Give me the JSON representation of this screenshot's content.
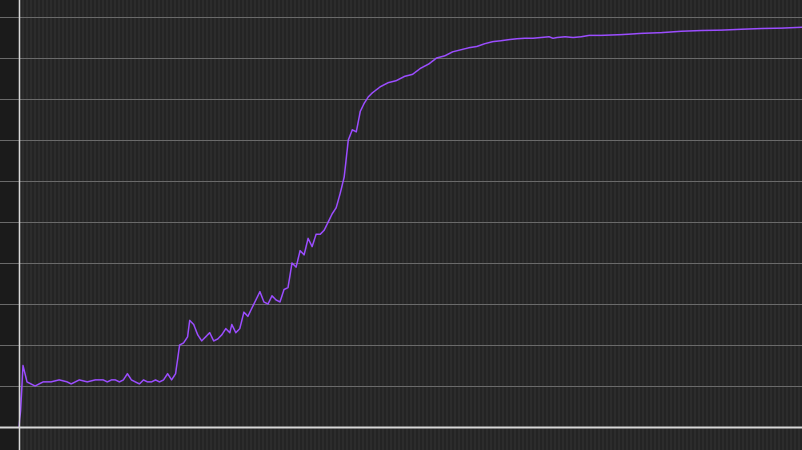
{
  "colors": {
    "background": "#242424",
    "minor_grid": "#353535",
    "major_grid": "#6a6a6a",
    "axis": "#d8d8d8",
    "left_gutter": "#1b1b1b",
    "line": "#9b4dff"
  },
  "chart_data": {
    "type": "line",
    "title": "",
    "xlabel": "",
    "ylabel": "",
    "grid": true,
    "xlim": [
      0,
      195
    ],
    "ylim": [
      0,
      10
    ],
    "y_major_gridlines": [
      1,
      2,
      3,
      4,
      5,
      6,
      7,
      8,
      9,
      10
    ],
    "series": [
      {
        "values": [
          [
            0,
            0.0
          ],
          [
            0.4,
            0.4
          ],
          [
            1,
            1.5
          ],
          [
            2,
            1.1
          ],
          [
            3,
            1.05
          ],
          [
            4,
            1.0
          ],
          [
            5,
            1.05
          ],
          [
            6,
            1.1
          ],
          [
            8,
            1.1
          ],
          [
            10,
            1.15
          ],
          [
            12,
            1.1
          ],
          [
            13,
            1.05
          ],
          [
            14,
            1.1
          ],
          [
            15,
            1.15
          ],
          [
            17,
            1.1
          ],
          [
            19,
            1.15
          ],
          [
            21,
            1.15
          ],
          [
            22,
            1.1
          ],
          [
            23,
            1.15
          ],
          [
            24,
            1.15
          ],
          [
            25,
            1.1
          ],
          [
            26,
            1.15
          ],
          [
            27,
            1.3
          ],
          [
            28,
            1.15
          ],
          [
            29,
            1.1
          ],
          [
            30,
            1.05
          ],
          [
            31,
            1.15
          ],
          [
            32,
            1.1
          ],
          [
            33,
            1.1
          ],
          [
            34,
            1.15
          ],
          [
            35,
            1.1
          ],
          [
            36,
            1.15
          ],
          [
            37,
            1.3
          ],
          [
            38,
            1.15
          ],
          [
            39,
            1.3
          ],
          [
            40,
            2.0
          ],
          [
            41,
            2.05
          ],
          [
            42,
            2.2
          ],
          [
            42.5,
            2.6
          ],
          [
            43.5,
            2.5
          ],
          [
            44.5,
            2.25
          ],
          [
            45.5,
            2.1
          ],
          [
            46.5,
            2.2
          ],
          [
            47.5,
            2.3
          ],
          [
            48.5,
            2.1
          ],
          [
            49.5,
            2.15
          ],
          [
            50.5,
            2.25
          ],
          [
            51.5,
            2.4
          ],
          [
            52.5,
            2.3
          ],
          [
            53,
            2.5
          ],
          [
            54,
            2.3
          ],
          [
            55,
            2.4
          ],
          [
            56,
            2.8
          ],
          [
            57,
            2.7
          ],
          [
            58,
            2.9
          ],
          [
            59,
            3.1
          ],
          [
            60,
            3.3
          ],
          [
            61,
            3.05
          ],
          [
            62,
            3.0
          ],
          [
            63,
            3.2
          ],
          [
            64,
            3.1
          ],
          [
            65,
            3.05
          ],
          [
            66,
            3.35
          ],
          [
            67,
            3.4
          ],
          [
            68,
            4.0
          ],
          [
            69,
            3.9
          ],
          [
            70,
            4.3
          ],
          [
            71,
            4.2
          ],
          [
            72,
            4.6
          ],
          [
            73,
            4.4
          ],
          [
            74,
            4.7
          ],
          [
            75,
            4.7
          ],
          [
            76,
            4.8
          ],
          [
            77,
            5.0
          ],
          [
            78,
            5.2
          ],
          [
            79,
            5.35
          ],
          [
            80,
            5.7
          ],
          [
            81,
            6.1
          ],
          [
            82,
            7.0
          ],
          [
            83,
            7.25
          ],
          [
            84,
            7.2
          ],
          [
            85,
            7.7
          ],
          [
            86,
            7.9
          ],
          [
            87,
            8.05
          ],
          [
            88,
            8.15
          ],
          [
            90,
            8.3
          ],
          [
            92,
            8.4
          ],
          [
            94,
            8.45
          ],
          [
            96,
            8.55
          ],
          [
            98,
            8.6
          ],
          [
            100,
            8.75
          ],
          [
            102,
            8.85
          ],
          [
            104,
            9.0
          ],
          [
            106,
            9.05
          ],
          [
            108,
            9.15
          ],
          [
            110,
            9.2
          ],
          [
            112,
            9.25
          ],
          [
            114,
            9.28
          ],
          [
            116,
            9.35
          ],
          [
            118,
            9.4
          ],
          [
            120,
            9.42
          ],
          [
            122,
            9.45
          ],
          [
            124,
            9.47
          ],
          [
            126,
            9.48
          ],
          [
            128,
            9.48
          ],
          [
            130,
            9.5
          ],
          [
            132,
            9.52
          ],
          [
            133,
            9.48
          ],
          [
            134,
            9.5
          ],
          [
            136,
            9.52
          ],
          [
            138,
            9.5
          ],
          [
            140,
            9.52
          ],
          [
            142,
            9.55
          ],
          [
            145,
            9.55
          ],
          [
            150,
            9.57
          ],
          [
            155,
            9.6
          ],
          [
            160,
            9.62
          ],
          [
            165,
            9.65
          ],
          [
            170,
            9.67
          ],
          [
            175,
            9.68
          ],
          [
            180,
            9.7
          ],
          [
            185,
            9.72
          ],
          [
            190,
            9.73
          ],
          [
            195,
            9.75
          ]
        ]
      }
    ]
  }
}
